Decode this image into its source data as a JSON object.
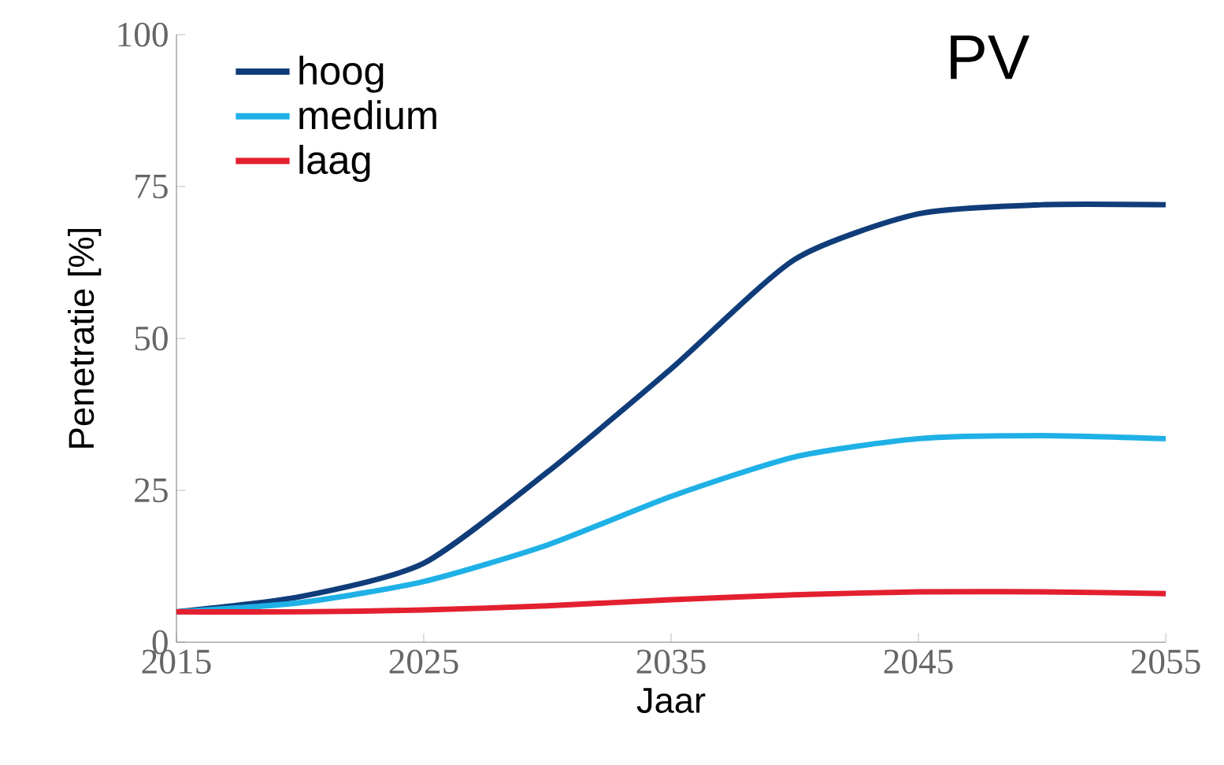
{
  "chart_data": {
    "type": "line",
    "title": "PV",
    "xlabel": "Jaar",
    "ylabel": "Penetratie [%]",
    "x": [
      2015,
      2020,
      2025,
      2030,
      2035,
      2040,
      2045,
      2050,
      2055
    ],
    "series": [
      {
        "name": "hoog",
        "color": "#103d7a",
        "values": [
          5,
          7.5,
          13,
          28,
          45,
          63,
          70.5,
          72,
          72
        ]
      },
      {
        "name": "medium",
        "color": "#1fb1e6",
        "values": [
          5,
          6.5,
          10,
          16,
          24,
          30.5,
          33.5,
          34,
          33.5
        ]
      },
      {
        "name": "laag",
        "color": "#e3202f",
        "values": [
          5,
          5,
          5.3,
          6,
          7,
          7.8,
          8.3,
          8.3,
          8
        ]
      }
    ],
    "xlim": [
      2015,
      2055
    ],
    "ylim": [
      0,
      100
    ],
    "xticks": [
      2015,
      2025,
      2035,
      2045,
      2055
    ],
    "yticks": [
      0,
      25,
      50,
      75,
      100
    ],
    "grid": false,
    "legend": "top left",
    "marker": "none",
    "line_style": "solid"
  }
}
